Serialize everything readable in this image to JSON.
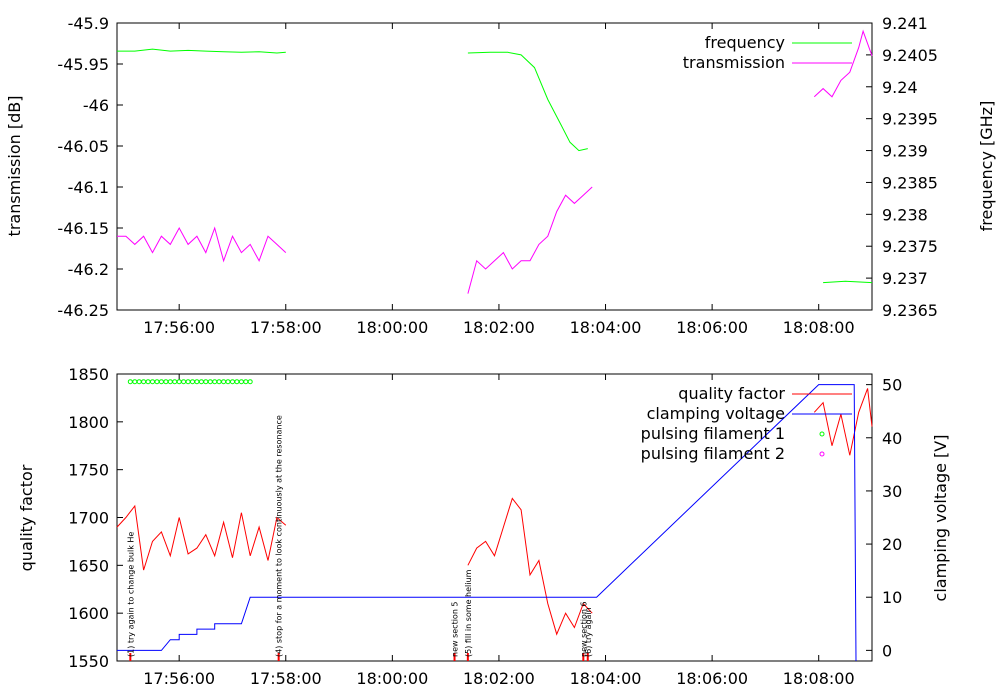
{
  "chart_data": [
    {
      "type": "line",
      "xlabel": "",
      "ylabel": "transmission [dB]",
      "y2label": "frequency [GHz]",
      "xlim": [
        "17:54:50",
        "18:09:00"
      ],
      "ylim": [
        -46.25,
        -45.9
      ],
      "y2lim": [
        9.2365,
        9.241
      ],
      "x_ticks": [
        "17:56:00",
        "17:58:00",
        "18:00:00",
        "18:02:00",
        "18:04:00",
        "18:06:00",
        "18:08:00"
      ],
      "y_ticks": [
        "-45.9",
        "-45.95",
        "-46",
        "-46.05",
        "-46.1",
        "-46.15",
        "-46.2",
        "-46.25"
      ],
      "y2_ticks": [
        "9.241",
        "9.2405",
        "9.24",
        "9.2395",
        "9.239",
        "9.2385",
        "9.238",
        "9.2375",
        "9.237",
        "9.2365"
      ],
      "legend_position": "top-right",
      "series": [
        {
          "name": "frequency",
          "axis": "y2",
          "color": "#00ff00",
          "segments": [
            [
              [
                "17:54:50",
                9.24056
              ],
              [
                "17:55:10",
                9.24056
              ],
              [
                "17:55:30",
                9.24059
              ],
              [
                "17:55:50",
                9.24056
              ],
              [
                "17:56:10",
                9.24057
              ],
              [
                "17:56:30",
                9.24056
              ],
              [
                "17:56:50",
                9.24055
              ],
              [
                "17:57:10",
                9.24054
              ],
              [
                "17:57:30",
                9.24055
              ],
              [
                "17:57:50",
                9.24053
              ],
              [
                "17:58:00",
                9.24054
              ]
            ],
            [
              [
                "18:01:25",
                9.24053
              ],
              [
                "18:01:50",
                9.24054
              ],
              [
                "18:02:10",
                9.24054
              ],
              [
                "18:02:25",
                9.2405
              ],
              [
                "18:02:40",
                9.2403
              ],
              [
                "18:02:55",
                9.2398
              ],
              [
                "18:03:10",
                9.2394
              ],
              [
                "18:03:20",
                9.23913
              ],
              [
                "18:03:30",
                9.239
              ],
              [
                "18:03:40",
                9.23903
              ]
            ],
            [
              [
                "18:08:05",
                9.23693
              ],
              [
                "18:08:30",
                9.23695
              ],
              [
                "18:09:00",
                9.23693
              ]
            ]
          ]
        },
        {
          "name": "transmission",
          "axis": "y",
          "color": "#ff00ff",
          "segments": [
            [
              [
                "17:54:50",
                -46.16
              ],
              [
                "17:55:00",
                -46.16
              ],
              [
                "17:55:10",
                -46.17
              ],
              [
                "17:55:20",
                -46.16
              ],
              [
                "17:55:30",
                -46.18
              ],
              [
                "17:55:40",
                -46.16
              ],
              [
                "17:55:50",
                -46.17
              ],
              [
                "17:56:00",
                -46.15
              ],
              [
                "17:56:10",
                -46.17
              ],
              [
                "17:56:20",
                -46.16
              ],
              [
                "17:56:30",
                -46.18
              ],
              [
                "17:56:40",
                -46.15
              ],
              [
                "17:56:50",
                -46.19
              ],
              [
                "17:57:00",
                -46.16
              ],
              [
                "17:57:10",
                -46.18
              ],
              [
                "17:57:20",
                -46.17
              ],
              [
                "17:57:30",
                -46.19
              ],
              [
                "17:57:40",
                -46.16
              ],
              [
                "17:57:50",
                -46.17
              ],
              [
                "17:58:00",
                -46.18
              ]
            ],
            [
              [
                "18:01:25",
                -46.23
              ],
              [
                "18:01:35",
                -46.19
              ],
              [
                "18:01:45",
                -46.2
              ],
              [
                "18:01:55",
                -46.19
              ],
              [
                "18:02:05",
                -46.18
              ],
              [
                "18:02:15",
                -46.2
              ],
              [
                "18:02:25",
                -46.19
              ],
              [
                "18:02:35",
                -46.19
              ],
              [
                "18:02:45",
                -46.17
              ],
              [
                "18:02:55",
                -46.16
              ],
              [
                "18:03:05",
                -46.13
              ],
              [
                "18:03:15",
                -46.11
              ],
              [
                "18:03:25",
                -46.12
              ],
              [
                "18:03:35",
                -46.11
              ],
              [
                "18:03:45",
                -46.1
              ]
            ],
            [
              [
                "18:07:55",
                -45.99
              ],
              [
                "18:08:05",
                -45.98
              ],
              [
                "18:08:15",
                -45.99
              ],
              [
                "18:08:25",
                -45.97
              ],
              [
                "18:08:35",
                -45.96
              ],
              [
                "18:08:45",
                -45.93
              ],
              [
                "18:08:50",
                -45.91
              ],
              [
                "18:09:00",
                -45.94
              ]
            ]
          ]
        }
      ]
    },
    {
      "type": "line",
      "xlabel": "",
      "ylabel": "quality factor",
      "y2label": "clamping voltage [V]",
      "xlim": [
        "17:54:50",
        "18:09:00"
      ],
      "ylim": [
        1550,
        1850
      ],
      "y2lim": [
        -2,
        52
      ],
      "x_ticks": [
        "17:56:00",
        "17:58:00",
        "18:00:00",
        "18:02:00",
        "18:04:00",
        "18:06:00",
        "18:08:00"
      ],
      "y_ticks": [
        "1850",
        "1800",
        "1750",
        "1700",
        "1650",
        "1600",
        "1550"
      ],
      "y2_ticks": [
        "50",
        "40",
        "30",
        "20",
        "10",
        "0"
      ],
      "legend_position": "top-right",
      "series": [
        {
          "name": "quality factor",
          "axis": "y",
          "color": "#ff0000",
          "segments": [
            [
              [
                "17:54:50",
                1690
              ],
              [
                "17:55:00",
                1700
              ],
              [
                "17:55:10",
                1712
              ],
              [
                "17:55:20",
                1645
              ],
              [
                "17:55:30",
                1675
              ],
              [
                "17:55:40",
                1685
              ],
              [
                "17:55:50",
                1660
              ],
              [
                "17:56:00",
                1700
              ],
              [
                "17:56:10",
                1662
              ],
              [
                "17:56:20",
                1668
              ],
              [
                "17:56:30",
                1682
              ],
              [
                "17:56:40",
                1660
              ],
              [
                "17:56:50",
                1695
              ],
              [
                "17:57:00",
                1658
              ],
              [
                "17:57:10",
                1705
              ],
              [
                "17:57:20",
                1660
              ],
              [
                "17:57:30",
                1690
              ],
              [
                "17:57:40",
                1655
              ],
              [
                "17:57:50",
                1700
              ],
              [
                "17:58:00",
                1692
              ]
            ],
            [
              [
                "18:01:25",
                1650
              ],
              [
                "18:01:35",
                1668
              ],
              [
                "18:01:45",
                1675
              ],
              [
                "18:01:55",
                1660
              ],
              [
                "18:02:05",
                1690
              ],
              [
                "18:02:15",
                1720
              ],
              [
                "18:02:25",
                1708
              ],
              [
                "18:02:35",
                1640
              ],
              [
                "18:02:45",
                1655
              ],
              [
                "18:02:55",
                1610
              ],
              [
                "18:03:05",
                1578
              ],
              [
                "18:03:15",
                1600
              ],
              [
                "18:03:25",
                1585
              ],
              [
                "18:03:35",
                1610
              ],
              [
                "18:03:45",
                1600
              ]
            ],
            [
              [
                "18:07:55",
                1810
              ],
              [
                "18:08:05",
                1820
              ],
              [
                "18:08:15",
                1775
              ],
              [
                "18:08:25",
                1808
              ],
              [
                "18:08:35",
                1765
              ],
              [
                "18:08:45",
                1810
              ],
              [
                "18:08:55",
                1835
              ],
              [
                "18:09:00",
                1795
              ]
            ]
          ]
        },
        {
          "name": "clamping voltage",
          "axis": "y2",
          "color": "#0000ff",
          "points": [
            [
              "17:54:50",
              0
            ],
            [
              "17:55:40",
              0
            ],
            [
              "17:55:50",
              2
            ],
            [
              "17:56:00",
              2
            ],
            [
              "17:56:00",
              3
            ],
            [
              "17:56:20",
              3
            ],
            [
              "17:56:20",
              4
            ],
            [
              "17:56:40",
              4
            ],
            [
              "17:56:40",
              5
            ],
            [
              "17:57:00",
              5
            ],
            [
              "17:57:10",
              5
            ],
            [
              "17:57:20",
              10
            ],
            [
              "17:58:00",
              10
            ],
            [
              "18:01:20",
              10
            ],
            [
              "18:03:50",
              10
            ],
            [
              "18:08:00",
              50
            ],
            [
              "18:08:40",
              50
            ],
            [
              "18:08:42",
              -2
            ]
          ]
        },
        {
          "name": "pulsing filament 1",
          "axis": "y",
          "color": "#00ff00",
          "marker": "circle",
          "x_start": "17:55:05",
          "x_end": "17:57:20",
          "y": 1842,
          "count": 28
        },
        {
          "name": "pulsing filament 2",
          "axis": "y",
          "color": "#ff00ff",
          "marker": "circle",
          "x_start": "",
          "x_end": "",
          "y": null,
          "count": 0
        }
      ],
      "annotations": [
        {
          "x": "17:55:05",
          "text": "(1) try again to change bulk He"
        },
        {
          "x": "17:57:52",
          "text": "(4) stop for a moment to look continuously at the resonance"
        },
        {
          "x": "18:01:10",
          "text": "new section 5"
        },
        {
          "x": "18:01:25",
          "text": "(5) fill in some helium"
        },
        {
          "x": "18:03:35",
          "text": "new section 6"
        },
        {
          "x": "18:03:40",
          "text": "(6) try again"
        }
      ]
    }
  ]
}
